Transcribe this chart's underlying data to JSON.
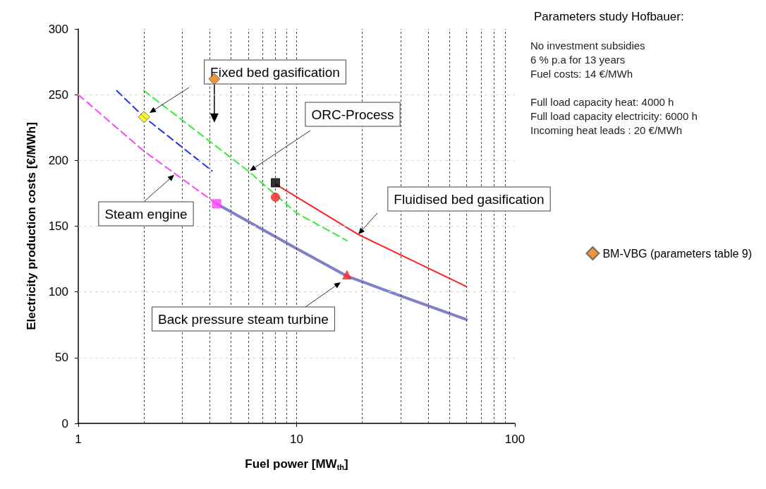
{
  "chart_data": {
    "type": "line",
    "title": "Parameters study Hofbauer:",
    "xlabel": "Fuel power [MW$_{th}$]",
    "ylabel": "Electricity production costs [€/MWh]",
    "log": "x",
    "xlim": [
      1,
      100
    ],
    "ylim": [
      0,
      300
    ],
    "xticks": [
      1,
      {
        "value": 2,
        "label": null
      },
      {
        "value": 3,
        "label": null
      },
      {
        "value": 4,
        "label": null
      },
      {
        "value": 5,
        "label": null
      },
      {
        "value": 6,
        "label": null
      },
      {
        "value": 7,
        "label": null
      },
      {
        "value": 8,
        "label": null
      },
      {
        "value": 9,
        "label": null
      },
      10,
      {
        "value": 20,
        "label": null
      },
      {
        "value": 30,
        "label": null
      },
      {
        "value": 40,
        "label": null
      },
      {
        "value": 50,
        "label": null
      },
      {
        "value": 60,
        "label": null
      },
      {
        "value": 70,
        "label": null
      },
      {
        "value": 80,
        "label": null
      },
      {
        "value": 90,
        "label": null
      },
      100
    ],
    "yticks": [
      0,
      50,
      100,
      150,
      200,
      250,
      300
    ],
    "grid": true,
    "legend": "right",
    "series": [
      {
        "type": "line",
        "color": "#ff44ff",
        "line_style": "dashed",
        "marker": "none",
        "x": [
          1,
          2,
          4.3
        ],
        "values": [
          250,
          207,
          167
        ]
      },
      {
        "type": "line",
        "color": "#2233ee",
        "line_style": "dashed",
        "marker": "none",
        "x": [
          1.5,
          2,
          4.1
        ],
        "values": [
          253,
          233,
          192
        ]
      },
      {
        "type": "line",
        "color": "#33ee33",
        "line_style": "dashed",
        "marker": "none",
        "x": [
          2,
          6,
          10,
          17
        ],
        "values": [
          253,
          192,
          160,
          139
        ]
      },
      {
        "type": "line",
        "color": "#ff2222",
        "line_style": "solid",
        "marker": "none",
        "x": [
          8,
          19,
          60
        ],
        "values": [
          182,
          144,
          104
        ]
      },
      {
        "type": "line",
        "color": "#8080c8",
        "line_style": "solid",
        "marker": "none",
        "x": [
          4.3,
          10,
          17,
          30,
          60
        ],
        "values": [
          167,
          133,
          112,
          97,
          79
        ]
      },
      {
        "type": "scatter",
        "color": "#ffff00",
        "marker": "diamond",
        "x": [
          2
        ],
        "values": [
          233
        ]
      },
      {
        "type": "scatter",
        "color": "#ff44ff",
        "marker": "square",
        "x": [
          4.3
        ],
        "values": [
          167
        ]
      },
      {
        "type": "scatter",
        "color": "#000000",
        "marker": "square",
        "x": [
          8
        ],
        "values": [
          183
        ]
      },
      {
        "type": "scatter",
        "color": "#ff2222",
        "marker": "circle",
        "x": [
          8
        ],
        "values": [
          172
        ]
      },
      {
        "type": "scatter",
        "color": "#ff2222",
        "marker": "triangle",
        "x": [
          17
        ],
        "values": [
          113
        ]
      },
      {
        "type": "scatter",
        "name": "BM-VBG (parameters table 9)",
        "color": "#e87d0a",
        "marker": "diamond",
        "x": [
          4.2
        ],
        "values": [
          262
        ]
      }
    ],
    "annotations": [
      "Fixed bed gasification",
      {
        "text": "ORC-Process",
        "x": 6.1,
        "y": 192
      },
      {
        "text": "Steam engine",
        "x": 2.75,
        "y": 189
      },
      "Fluidised bed gasification",
      "Back pressure steam turbine",
      "No investment subsidies",
      "6 % p.a for 13 years",
      "Fuel costs: 14 €/MWh",
      "Full load capacity heat: 4000 h",
      "Full load capacity electricity: 6000 h",
      "Incoming heat leads : 20 €/MWh"
    ]
  }
}
